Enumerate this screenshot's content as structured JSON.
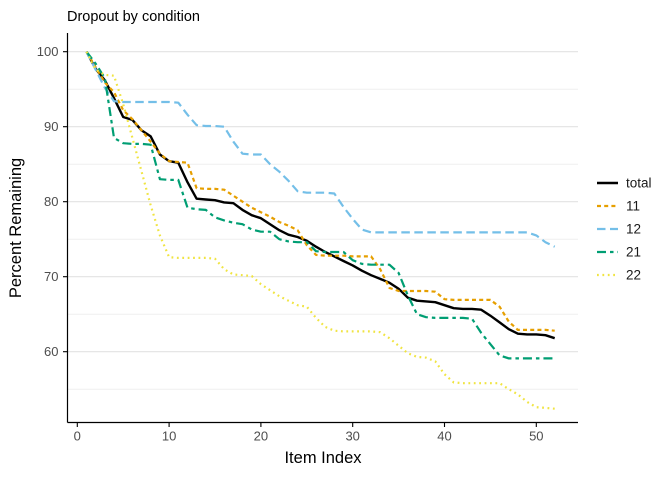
{
  "chart_data": {
    "type": "line",
    "title": "Dropout by condition",
    "xlabel": "Item Index",
    "ylabel": "Percent Remaining",
    "x_ticks": [
      0,
      10,
      20,
      30,
      40,
      50
    ],
    "y_ticks": [
      100,
      90,
      80,
      70,
      60
    ],
    "y_minor_gridlines": [
      95,
      85,
      75,
      65,
      55
    ],
    "xlim": [
      0,
      55
    ],
    "ylim": [
      50.5,
      102.5
    ],
    "grid": "horizontal-only",
    "legend_position": "right",
    "x": [
      1,
      2,
      3,
      4,
      5,
      6,
      7,
      8,
      9,
      10,
      11,
      12,
      13,
      14,
      15,
      16,
      17,
      18,
      19,
      20,
      21,
      22,
      23,
      24,
      25,
      26,
      27,
      28,
      29,
      30,
      31,
      32,
      33,
      34,
      35,
      36,
      37,
      38,
      39,
      40,
      41,
      42,
      43,
      44,
      45,
      46,
      47,
      48,
      49,
      50,
      51,
      52
    ],
    "series": [
      {
        "name": "total",
        "color": "#000000",
        "dash": "solid",
        "width": 2.4,
        "values": [
          100,
          97.7,
          96.2,
          93.8,
          91.3,
          90.9,
          89.5,
          88.7,
          86.3,
          85.4,
          85.2,
          82.6,
          80.4,
          80.3,
          80.2,
          79.9,
          79.8,
          78.9,
          78.2,
          77.8,
          77.0,
          76.2,
          75.6,
          75.3,
          74.8,
          74.0,
          73.3,
          72.7,
          72.1,
          71.5,
          70.8,
          70.2,
          69.7,
          69.2,
          68.4,
          67.2,
          66.8,
          66.7,
          66.6,
          66.2,
          65.8,
          65.7,
          65.7,
          65.6,
          64.8,
          63.9,
          63.0,
          62.4,
          62.3,
          62.3,
          62.2,
          61.8
        ]
      },
      {
        "name": "11",
        "color": "#E69F00",
        "dash": "dashed",
        "width": 2.2,
        "values": [
          100,
          97.9,
          95.9,
          94.6,
          92.2,
          91.0,
          89.5,
          88.0,
          86.4,
          85.4,
          85.3,
          85.2,
          81.8,
          81.7,
          81.7,
          81.6,
          80.8,
          80.0,
          79.2,
          78.6,
          78.0,
          77.3,
          76.8,
          76.2,
          74.2,
          72.9,
          72.8,
          72.8,
          72.8,
          72.7,
          72.7,
          72.7,
          71.0,
          68.5,
          68.1,
          68.1,
          68.1,
          68.1,
          68.0,
          67.0,
          66.9,
          66.9,
          66.9,
          66.9,
          66.9,
          66.0,
          64.0,
          62.9,
          62.9,
          62.9,
          62.9,
          62.8
        ]
      },
      {
        "name": "12",
        "color": "#74BFE8",
        "dash": "longdash",
        "width": 2.2,
        "values": [
          100,
          97.6,
          95.2,
          93.4,
          93.3,
          93.3,
          93.3,
          93.3,
          93.3,
          93.3,
          93.2,
          91.6,
          90.2,
          90.1,
          90.1,
          90.0,
          88.0,
          86.4,
          86.3,
          86.3,
          85.0,
          84.0,
          82.8,
          81.4,
          81.2,
          81.2,
          81.2,
          81.1,
          79.3,
          77.7,
          76.3,
          75.9,
          75.9,
          75.9,
          75.9,
          75.9,
          75.9,
          75.9,
          75.9,
          75.9,
          75.9,
          75.9,
          75.9,
          75.9,
          75.9,
          75.9,
          75.9,
          75.9,
          75.9,
          75.5,
          74.6,
          74.0
        ]
      },
      {
        "name": "21",
        "color": "#009E73",
        "dash": "twodash",
        "width": 2.2,
        "values": [
          100,
          98.4,
          96.5,
          88.5,
          87.8,
          87.7,
          87.7,
          87.6,
          83.0,
          82.9,
          82.9,
          79.2,
          79.0,
          78.9,
          77.9,
          77.5,
          77.2,
          77.0,
          76.3,
          76.0,
          76.0,
          75.0,
          74.7,
          74.6,
          74.6,
          73.4,
          73.3,
          73.3,
          73.3,
          72.2,
          71.7,
          71.6,
          71.6,
          71.6,
          70.5,
          67.5,
          65.0,
          64.6,
          64.5,
          64.5,
          64.5,
          64.5,
          64.4,
          62.5,
          61.0,
          59.5,
          59.1,
          59.1,
          59.1,
          59.1,
          59.1,
          59.1
        ]
      },
      {
        "name": "22",
        "color": "#F0E442",
        "dash": "dotted",
        "width": 2.2,
        "values": [
          100,
          97.6,
          96.9,
          96.8,
          93.0,
          88.5,
          84.0,
          79.5,
          75.5,
          72.6,
          72.5,
          72.5,
          72.5,
          72.5,
          72.4,
          71.0,
          70.3,
          70.2,
          70.1,
          69.0,
          68.2,
          67.4,
          66.8,
          66.2,
          66.0,
          64.5,
          63.3,
          62.8,
          62.7,
          62.7,
          62.7,
          62.7,
          62.6,
          61.8,
          60.8,
          59.8,
          59.3,
          59.2,
          58.7,
          57.0,
          55.9,
          55.8,
          55.8,
          55.8,
          55.8,
          55.8,
          55.0,
          54.3,
          53.3,
          52.6,
          52.5,
          52.4
        ]
      }
    ],
    "legend_entries": [
      "total",
      "11",
      "12",
      "21",
      "22"
    ],
    "style_colors": {
      "gridline_major": "#e2e2e2",
      "gridline_minor": "#efefef",
      "axis_line": "#000000",
      "tick_text": "#4d4d4d"
    }
  }
}
